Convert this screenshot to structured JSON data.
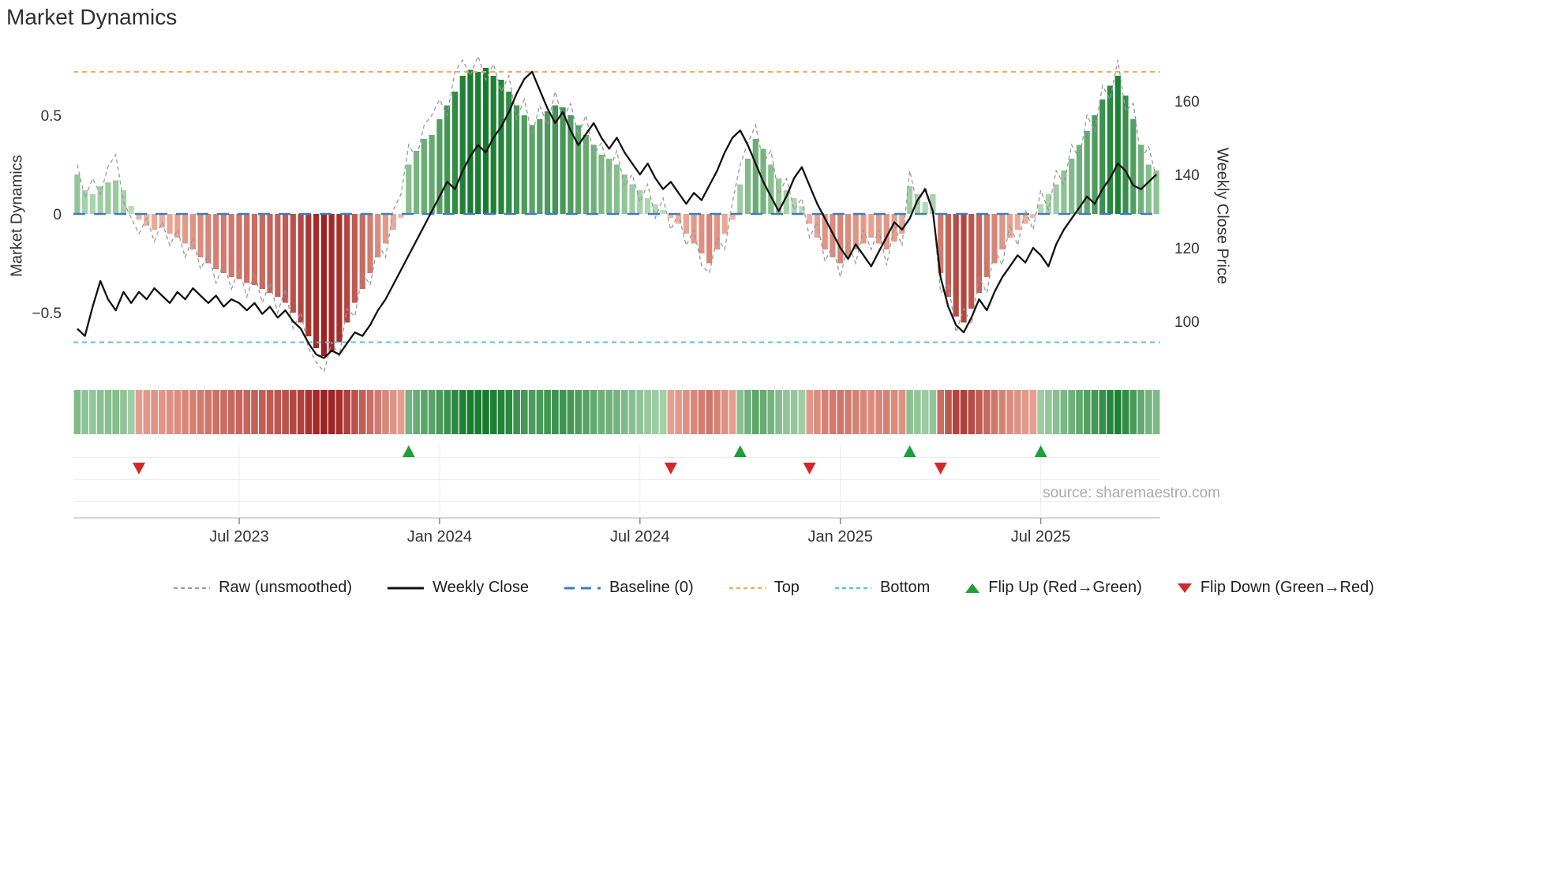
{
  "title": "Market Dynamics",
  "source_text": "source: sharemaestro.com",
  "colors": {
    "bar_green_light": "#c0e1c0",
    "bar_green_dark": "#147a2c",
    "bar_red_light": "#f6baa6",
    "bar_red_dark": "#9a1c1c",
    "weekly_close": "#111111",
    "raw_line": "#999999",
    "baseline": "#3a7cc0",
    "top_line": "#f0ab66",
    "bottom_line": "#4fc8dd",
    "flip_up": "#1f9e3b",
    "flip_down": "#d62728",
    "axis_text": "#333333",
    "grid": "#ececec",
    "axis_line": "#cccccc",
    "source_text": "#aaaaaa",
    "title_text": "#2f2f2f"
  },
  "legend": {
    "items": [
      {
        "label": "Raw (unsmoothed)",
        "swatch": "dashed-gray-line"
      },
      {
        "label": "Weekly Close",
        "swatch": "solid-black-line"
      },
      {
        "label": "Baseline (0)",
        "swatch": "dashed-blue-line"
      },
      {
        "label": "Top",
        "swatch": "dashed-orange-line"
      },
      {
        "label": "Bottom",
        "swatch": "dashed-cyan-line"
      },
      {
        "label": "Flip Up (Red→Green)",
        "swatch": "green-up-triangle"
      },
      {
        "label": "Flip Down (Green→Red)",
        "swatch": "red-down-triangle"
      }
    ]
  },
  "chart_data": {
    "type": "bar+line",
    "title": "Market Dynamics",
    "legend_position": "bottom",
    "left_axis": {
      "label": "Market Dynamics",
      "tick_labels": [
        "0.5",
        "0",
        "−0.5"
      ],
      "tick_values": [
        0.5,
        0,
        -0.5
      ],
      "ylim": [
        -0.85,
        0.85
      ]
    },
    "right_axis": {
      "label": "Weekly Close Price",
      "tick_labels": [
        "160",
        "140",
        "120",
        "100"
      ],
      "tick_values": [
        160,
        140,
        120,
        100
      ],
      "ylim": [
        84,
        175
      ]
    },
    "x_axis": {
      "unit": "week",
      "n_points": 141,
      "tick_labels": [
        "Jul 2023",
        "Jan 2024",
        "Jul 2024",
        "Jan 2025",
        "Jul 2025"
      ],
      "tick_indices": [
        21,
        47,
        73,
        99,
        125
      ]
    },
    "series": [
      {
        "name": "Market Dynamics (smoothed bars)",
        "type": "bar",
        "axis": "left",
        "values": [
          0.2,
          0.12,
          0.1,
          0.14,
          0.16,
          0.17,
          0.12,
          0.04,
          -0.03,
          -0.06,
          -0.08,
          -0.07,
          -0.1,
          -0.12,
          -0.15,
          -0.18,
          -0.22,
          -0.25,
          -0.28,
          -0.3,
          -0.32,
          -0.33,
          -0.35,
          -0.36,
          -0.38,
          -0.4,
          -0.42,
          -0.45,
          -0.5,
          -0.55,
          -0.62,
          -0.68,
          -0.72,
          -0.7,
          -0.65,
          -0.55,
          -0.45,
          -0.38,
          -0.3,
          -0.22,
          -0.15,
          -0.08,
          -0.02,
          0.25,
          0.32,
          0.38,
          0.4,
          0.48,
          0.55,
          0.62,
          0.7,
          0.73,
          0.72,
          0.74,
          0.7,
          0.68,
          0.62,
          0.55,
          0.5,
          0.45,
          0.48,
          0.52,
          0.55,
          0.54,
          0.5,
          0.45,
          0.4,
          0.35,
          0.3,
          0.28,
          0.25,
          0.2,
          0.15,
          0.12,
          0.08,
          0.05,
          0.02,
          -0.02,
          -0.05,
          -0.1,
          -0.15,
          -0.2,
          -0.25,
          -0.18,
          -0.1,
          -0.03,
          0.15,
          0.28,
          0.38,
          0.33,
          0.25,
          0.18,
          0.12,
          0.08,
          0.04,
          -0.05,
          -0.12,
          -0.18,
          -0.22,
          -0.25,
          -0.22,
          -0.18,
          -0.15,
          -0.12,
          -0.15,
          -0.18,
          -0.14,
          -0.1,
          0.14,
          0.1,
          0.06,
          0.1,
          -0.3,
          -0.42,
          -0.52,
          -0.55,
          -0.48,
          -0.4,
          -0.32,
          -0.25,
          -0.18,
          -0.12,
          -0.08,
          -0.05,
          -0.02,
          0.05,
          0.1,
          0.15,
          0.22,
          0.28,
          0.35,
          0.42,
          0.5,
          0.58,
          0.65,
          0.7,
          0.6,
          0.48,
          0.35,
          0.25,
          0.22
        ]
      },
      {
        "name": "Raw (unsmoothed)",
        "type": "line",
        "style": "dashed",
        "axis": "left",
        "values": [
          0.25,
          0.08,
          0.18,
          0.1,
          0.24,
          0.3,
          0.06,
          -0.02,
          -0.1,
          -0.02,
          -0.14,
          -0.04,
          -0.16,
          -0.08,
          -0.22,
          -0.12,
          -0.28,
          -0.2,
          -0.35,
          -0.25,
          -0.38,
          -0.28,
          -0.42,
          -0.3,
          -0.45,
          -0.35,
          -0.5,
          -0.38,
          -0.58,
          -0.5,
          -0.68,
          -0.75,
          -0.8,
          -0.65,
          -0.72,
          -0.48,
          -0.52,
          -0.3,
          -0.36,
          -0.15,
          -0.22,
          0.02,
          0.1,
          0.35,
          0.28,
          0.45,
          0.5,
          0.58,
          0.5,
          0.72,
          0.78,
          0.7,
          0.8,
          0.68,
          0.76,
          0.62,
          0.7,
          0.48,
          0.58,
          0.4,
          0.55,
          0.45,
          0.62,
          0.48,
          0.56,
          0.4,
          0.5,
          0.3,
          0.36,
          0.22,
          0.32,
          0.14,
          0.2,
          0.06,
          0.15,
          -0.02,
          0.08,
          -0.08,
          0.0,
          -0.16,
          -0.08,
          -0.26,
          -0.3,
          -0.12,
          -0.18,
          0.06,
          0.25,
          0.36,
          0.45,
          0.26,
          0.32,
          0.1,
          0.18,
          0.02,
          0.08,
          -0.12,
          -0.04,
          -0.24,
          -0.16,
          -0.32,
          -0.15,
          -0.25,
          -0.08,
          -0.18,
          -0.08,
          -0.26,
          -0.06,
          -0.16,
          0.22,
          0.04,
          0.14,
          0.02,
          -0.4,
          -0.35,
          -0.6,
          -0.48,
          -0.56,
          -0.32,
          -0.4,
          -0.18,
          -0.26,
          -0.05,
          -0.16,
          0.02,
          -0.08,
          0.12,
          0.02,
          0.22,
          0.15,
          0.35,
          0.28,
          0.5,
          0.42,
          0.65,
          0.58,
          0.78,
          0.52,
          0.56,
          0.28,
          0.34,
          0.18
        ]
      },
      {
        "name": "Weekly Close",
        "type": "line",
        "axis": "right",
        "values": [
          98,
          96,
          104,
          111,
          106,
          103,
          108,
          105,
          108,
          106,
          109,
          107,
          105,
          108,
          106,
          109,
          107,
          105,
          107,
          104,
          106,
          105,
          103,
          105,
          102,
          104,
          101,
          103,
          100,
          98,
          94,
          91,
          90,
          92,
          91,
          94,
          97,
          96,
          99,
          103,
          106,
          110,
          114,
          118,
          122,
          126,
          130,
          134,
          138,
          136,
          141,
          145,
          148,
          146,
          150,
          153,
          157,
          162,
          166,
          168,
          163,
          158,
          154,
          157,
          152,
          148,
          151,
          154,
          150,
          147,
          150,
          146,
          143,
          140,
          143,
          139,
          136,
          138,
          135,
          132,
          135,
          133,
          137,
          141,
          146,
          150,
          152,
          148,
          143,
          138,
          134,
          130,
          134,
          139,
          142,
          137,
          132,
          128,
          124,
          120,
          117,
          121,
          118,
          115,
          119,
          123,
          127,
          125,
          128,
          133,
          136,
          130,
          112,
          104,
          99,
          97,
          101,
          106,
          103,
          108,
          112,
          115,
          118,
          116,
          120,
          118,
          115,
          121,
          125,
          128,
          131,
          134,
          132,
          136,
          139,
          143,
          141,
          137,
          136,
          138,
          140
        ]
      }
    ],
    "reference_lines": [
      {
        "name": "Baseline (0)",
        "axis": "left",
        "value": 0
      },
      {
        "name": "Top",
        "axis": "left",
        "value": 0.72
      },
      {
        "name": "Bottom",
        "axis": "left",
        "value": -0.65
      }
    ],
    "markers": {
      "flip_up_indices": [
        43,
        86,
        108,
        125
      ],
      "flip_down_indices": [
        8,
        77,
        95,
        112
      ]
    },
    "heatmap": {
      "source": "oscillator bars (sign + intensity color strip)"
    }
  }
}
